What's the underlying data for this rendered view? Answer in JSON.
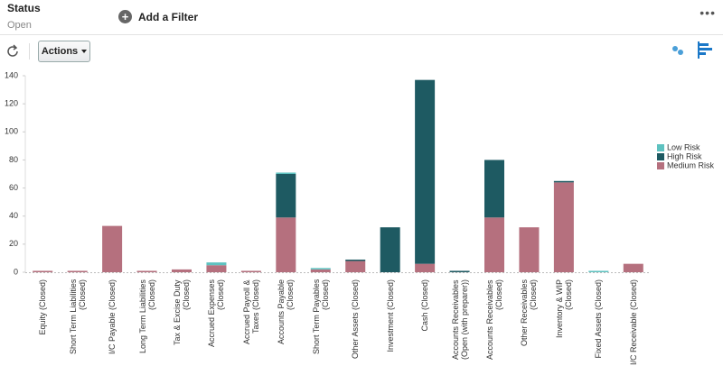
{
  "header": {
    "title": "Status",
    "value": "Open",
    "add_filter": "Add a Filter"
  },
  "toolbar": {
    "actions": "Actions"
  },
  "chart_data": {
    "type": "bar",
    "stacked": true,
    "categories": [
      "Equity (Closed)",
      "Short Term Liabilities (Closed)",
      "I/C Payable (Closed)",
      "Long Term Liabilities (Closed)",
      "Tax & Excise Duty (Closed)",
      "Accrued Expenses (Closed)",
      "Accrued Payroll & Taxes (Closed)",
      "Accounts Payable (Closed)",
      "Short Term Payables (Closed)",
      "Other Assets (Closed)",
      "Investment (Closed)",
      "Cash (Closed)",
      "Accounts Receivables (Open (with preparer))",
      "Accounts Receivables (Closed)",
      "Other Receivables (Closed)",
      "Inventory & WIP (Closed)",
      "Fixed Assets (Closed)",
      "I/C Receivable (Closed)"
    ],
    "series": [
      {
        "name": "Low Risk",
        "color": "#5ec2c0",
        "values": [
          0,
          0,
          0,
          0,
          0,
          2,
          0,
          1,
          1,
          0,
          0,
          0,
          0,
          0,
          0,
          0,
          1,
          0
        ]
      },
      {
        "name": "High Risk",
        "color": "#1e5a62",
        "values": [
          0,
          0,
          0,
          0,
          0,
          0,
          0,
          31,
          0,
          1,
          32,
          131,
          1,
          41,
          0,
          1,
          0,
          0
        ]
      },
      {
        "name": "Medium Risk",
        "color": "#b5707e",
        "values": [
          1,
          1,
          33,
          1,
          2,
          5,
          1,
          39,
          2,
          8,
          0,
          6,
          0,
          39,
          32,
          64,
          0,
          6
        ]
      }
    ],
    "ylim": [
      0,
      140
    ],
    "yticks": [
      0,
      20,
      40,
      60,
      80,
      100,
      120,
      140
    ],
    "grid": false
  }
}
